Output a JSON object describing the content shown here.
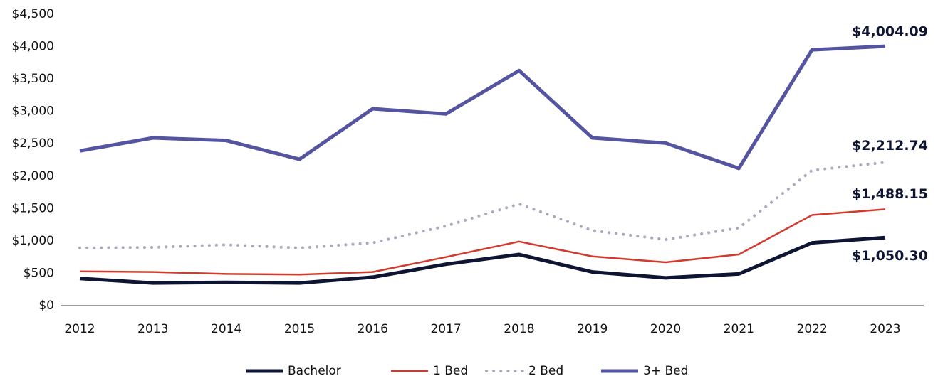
{
  "chart_data": {
    "type": "line",
    "categories": [
      "2012",
      "2013",
      "2014",
      "2015",
      "2016",
      "2017",
      "2018",
      "2019",
      "2020",
      "2021",
      "2022",
      "2023"
    ],
    "series": [
      {
        "name": "Bachelor",
        "color": "#0d1533",
        "line_style": "solid",
        "values": [
          420,
          350,
          360,
          350,
          440,
          640,
          790,
          520,
          430,
          490,
          970,
          1050.3
        ],
        "value_labels": [
          null,
          null,
          null,
          null,
          null,
          null,
          null,
          null,
          null,
          null,
          null,
          "$1,050.30"
        ]
      },
      {
        "name": "1 Bed",
        "color": "#d33a2e",
        "line_style": "solid",
        "values": [
          530,
          520,
          490,
          480,
          520,
          750,
          990,
          760,
          670,
          790,
          1400,
          1488.15
        ],
        "value_labels": [
          null,
          null,
          null,
          null,
          null,
          null,
          null,
          null,
          null,
          null,
          null,
          "$1,488.15"
        ]
      },
      {
        "name": "2 Bed",
        "color": "#a9a9bf",
        "line_style": "dotted",
        "values": [
          890,
          900,
          940,
          890,
          970,
          1230,
          1570,
          1160,
          1020,
          1200,
          2090,
          2212.74
        ],
        "value_labels": [
          null,
          null,
          null,
          null,
          null,
          null,
          null,
          null,
          null,
          null,
          null,
          "$2,212.74"
        ]
      },
      {
        "name": "3+ Bed",
        "color": "#5554a0",
        "line_style": "solid",
        "values": [
          2390,
          2590,
          2550,
          2260,
          3040,
          2960,
          3630,
          2590,
          2510,
          2120,
          3950,
          4004.09
        ],
        "value_labels": [
          null,
          null,
          null,
          null,
          null,
          null,
          null,
          null,
          null,
          null,
          null,
          "$4,004.09"
        ]
      }
    ],
    "ylim": [
      0,
      4500
    ],
    "yticks": [
      {
        "value": 0,
        "label": "$0"
      },
      {
        "value": 500,
        "label": "$500"
      },
      {
        "value": 1000,
        "label": "$1,000"
      },
      {
        "value": 1500,
        "label": "$1,500"
      },
      {
        "value": 2000,
        "label": "$2,000"
      },
      {
        "value": 2500,
        "label": "$2,500"
      },
      {
        "value": 3000,
        "label": "$3,000"
      },
      {
        "value": 3500,
        "label": "$3,500"
      },
      {
        "value": 4000,
        "label": "$4,000"
      },
      {
        "value": 4500,
        "label": "$4,500"
      }
    ],
    "grid": false,
    "legend": "bottom"
  }
}
